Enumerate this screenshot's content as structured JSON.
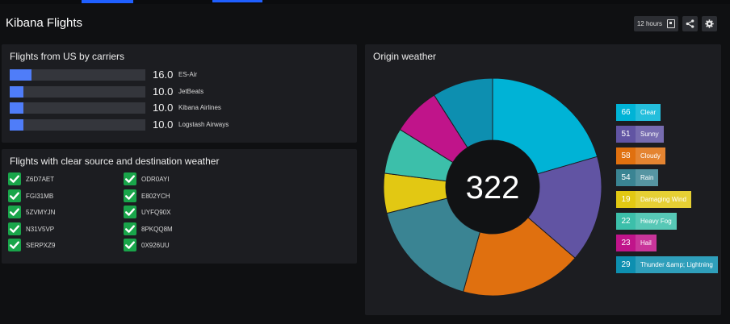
{
  "header": {
    "title": "Kibana Flights",
    "time_range": "12 hours"
  },
  "carriers_panel": {
    "title": "Flights from US by carriers",
    "rows": [
      {
        "value": "16.0",
        "name": "ES-Air",
        "fraction": 0.16
      },
      {
        "value": "10.0",
        "name": "JetBeats",
        "fraction": 0.1
      },
      {
        "value": "10.0",
        "name": "Kibana Airlines",
        "fraction": 0.1
      },
      {
        "value": "10.0",
        "name": "Logstash Airways",
        "fraction": 0.1
      }
    ]
  },
  "clear_weather_panel": {
    "title": "Flights with clear source and destination weather",
    "flights": [
      "Z6D7AET",
      "ODR0AYI",
      "FGI31MB",
      "E802YCH",
      "5ZVMYJN",
      "UYFQ90X",
      "N31V5VP",
      "8PKQQ8M",
      "SERPXZ9",
      "0X926UU"
    ]
  },
  "weather_panel": {
    "title": "Origin weather",
    "total": "322",
    "chart_data": {
      "type": "pie",
      "total": 322,
      "slices": [
        {
          "label": "Clear",
          "value": 66,
          "color": "#00b3d6"
        },
        {
          "label": "Sunny",
          "value": 51,
          "color": "#6154a3"
        },
        {
          "label": "Cloudy",
          "value": 58,
          "color": "#e0700f"
        },
        {
          "label": "Rain",
          "value": 54,
          "color": "#3a8493"
        },
        {
          "label": "Damaging Wind",
          "value": 19,
          "color": "#e2c813"
        },
        {
          "label": "Heavy Fog",
          "value": 22,
          "color": "#3cbfaa"
        },
        {
          "label": "Hail",
          "value": 23,
          "color": "#c0148a"
        },
        {
          "label": "Thunder &amp; Lightning",
          "value": 29,
          "color": "#0d8fb0"
        }
      ]
    }
  }
}
